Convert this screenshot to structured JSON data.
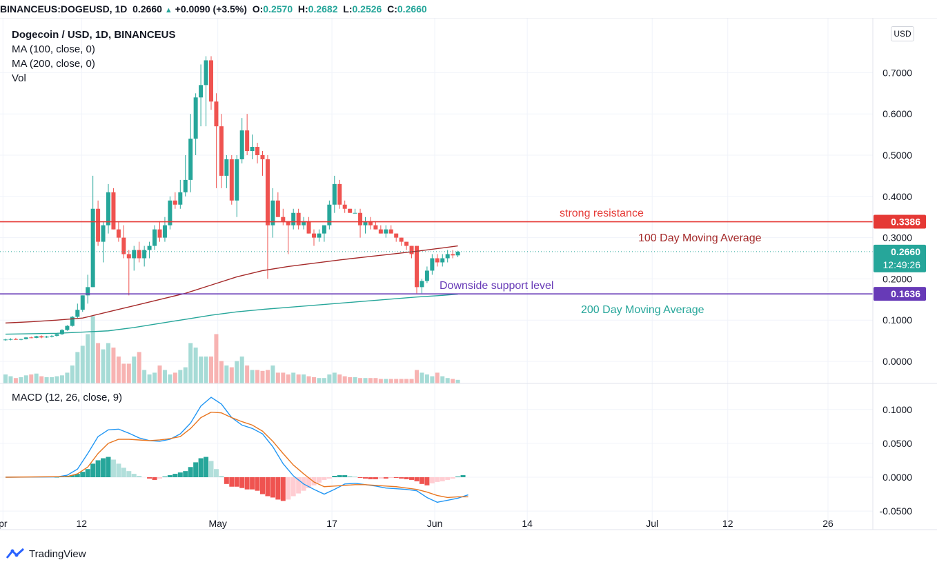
{
  "header": {
    "symbol": "BINANCEUS:DOGEUSD, 1D",
    "last": "0.2660",
    "change": "+0.0090 (+3.5%)",
    "o_label": "O:",
    "o": "0.2570",
    "h_label": "H:",
    "h": "0.2682",
    "l_label": "L:",
    "l": "0.2526",
    "c_label": "C:",
    "c": "0.2660"
  },
  "legend": {
    "title": "Dogecoin / USD, 1D, BINANCEUS",
    "ma100": "MA (100, close, 0)",
    "ma200": "MA (200, close, 0)",
    "vol": "Vol",
    "macd": "MACD (12, 26, close, 9)"
  },
  "currency_button": "USD",
  "brand": "TradingView",
  "colors": {
    "up": "#26a69a",
    "down": "#ef5350",
    "ma100": "#a52a2a",
    "ma200": "#26a69a",
    "resistance": "#e53935",
    "support": "#673ab7",
    "macd_line": "#2196f3",
    "signal_line": "#e87722"
  },
  "chart_data": {
    "type": "candlestick",
    "price_ticks": [
      "0.",
      "0.7000",
      "0.6000",
      "0.5000",
      "0.4000",
      "0.3000",
      "0.2000",
      "0.1000",
      "0.0000"
    ],
    "macd_ticks": [
      "0.1000",
      "0.0500",
      "0.0000",
      "-0.0500"
    ],
    "x_ticks": [
      "pr",
      "12",
      "May",
      "17",
      "Jun",
      "14",
      "Jul",
      "12",
      "26"
    ],
    "price_markers": [
      {
        "label": "0.3386",
        "value": 0.3386,
        "color": "#e53935"
      },
      {
        "label": "0.2660",
        "value": 0.266,
        "color": "#26a69a",
        "sub": "12:49:26"
      },
      {
        "label": "0.1636",
        "value": 0.1636,
        "color": "#673ab7"
      }
    ],
    "annotations": [
      {
        "text": "strong resistance",
        "color": "#e53935"
      },
      {
        "text": "100 Day Moving Average",
        "color": "#a52a2a"
      },
      {
        "text": "Downside support level",
        "color": "#673ab7"
      },
      {
        "text": "200 Day Moving Average",
        "color": "#26a69a"
      }
    ],
    "resistance": 0.3386,
    "support": 0.1636,
    "candles": [
      [
        0.052,
        0.055,
        0.05,
        0.053
      ],
      [
        0.053,
        0.056,
        0.051,
        0.054
      ],
      [
        0.054,
        0.057,
        0.052,
        0.053
      ],
      [
        0.053,
        0.055,
        0.051,
        0.054
      ],
      [
        0.054,
        0.059,
        0.053,
        0.058
      ],
      [
        0.058,
        0.06,
        0.056,
        0.057
      ],
      [
        0.057,
        0.062,
        0.056,
        0.061
      ],
      [
        0.061,
        0.063,
        0.056,
        0.058
      ],
      [
        0.058,
        0.062,
        0.057,
        0.06
      ],
      [
        0.06,
        0.064,
        0.058,
        0.062
      ],
      [
        0.062,
        0.068,
        0.06,
        0.066
      ],
      [
        0.066,
        0.078,
        0.064,
        0.076
      ],
      [
        0.076,
        0.088,
        0.074,
        0.086
      ],
      [
        0.086,
        0.11,
        0.084,
        0.108
      ],
      [
        0.108,
        0.14,
        0.105,
        0.125
      ],
      [
        0.125,
        0.16,
        0.12,
        0.16
      ],
      [
        0.16,
        0.21,
        0.14,
        0.18
      ],
      [
        0.18,
        0.45,
        0.18,
        0.37
      ],
      [
        0.37,
        0.39,
        0.28,
        0.29
      ],
      [
        0.29,
        0.34,
        0.24,
        0.33
      ],
      [
        0.33,
        0.43,
        0.31,
        0.41
      ],
      [
        0.41,
        0.42,
        0.32,
        0.32
      ],
      [
        0.32,
        0.34,
        0.29,
        0.3
      ],
      [
        0.3,
        0.33,
        0.25,
        0.26
      ],
      [
        0.26,
        0.27,
        0.16,
        0.25
      ],
      [
        0.25,
        0.28,
        0.22,
        0.27
      ],
      [
        0.27,
        0.29,
        0.24,
        0.25
      ],
      [
        0.25,
        0.28,
        0.23,
        0.27
      ],
      [
        0.27,
        0.29,
        0.25,
        0.28
      ],
      [
        0.28,
        0.33,
        0.27,
        0.32
      ],
      [
        0.32,
        0.34,
        0.29,
        0.3
      ],
      [
        0.3,
        0.35,
        0.29,
        0.33
      ],
      [
        0.33,
        0.4,
        0.32,
        0.39
      ],
      [
        0.39,
        0.41,
        0.37,
        0.38
      ],
      [
        0.38,
        0.44,
        0.37,
        0.41
      ],
      [
        0.41,
        0.5,
        0.4,
        0.44
      ],
      [
        0.44,
        0.6,
        0.41,
        0.54
      ],
      [
        0.54,
        0.65,
        0.5,
        0.64
      ],
      [
        0.64,
        0.72,
        0.57,
        0.67
      ],
      [
        0.67,
        0.74,
        0.57,
        0.73
      ],
      [
        0.73,
        0.74,
        0.61,
        0.63
      ],
      [
        0.63,
        0.65,
        0.42,
        0.57
      ],
      [
        0.57,
        0.6,
        0.42,
        0.45
      ],
      [
        0.45,
        0.5,
        0.42,
        0.49
      ],
      [
        0.49,
        0.5,
        0.38,
        0.39
      ],
      [
        0.39,
        0.5,
        0.35,
        0.49
      ],
      [
        0.49,
        0.59,
        0.48,
        0.56
      ],
      [
        0.56,
        0.6,
        0.5,
        0.51
      ],
      [
        0.51,
        0.55,
        0.49,
        0.52
      ],
      [
        0.52,
        0.53,
        0.48,
        0.5
      ],
      [
        0.5,
        0.51,
        0.45,
        0.49
      ],
      [
        0.49,
        0.5,
        0.2,
        0.33
      ],
      [
        0.33,
        0.42,
        0.3,
        0.39
      ],
      [
        0.39,
        0.41,
        0.35,
        0.35
      ],
      [
        0.35,
        0.37,
        0.33,
        0.34
      ],
      [
        0.34,
        0.34,
        0.26,
        0.33
      ],
      [
        0.33,
        0.37,
        0.32,
        0.36
      ],
      [
        0.36,
        0.37,
        0.32,
        0.33
      ],
      [
        0.33,
        0.35,
        0.32,
        0.34
      ],
      [
        0.34,
        0.35,
        0.31,
        0.31
      ],
      [
        0.31,
        0.32,
        0.28,
        0.3
      ],
      [
        0.3,
        0.32,
        0.29,
        0.31
      ],
      [
        0.31,
        0.33,
        0.29,
        0.33
      ],
      [
        0.33,
        0.39,
        0.32,
        0.38
      ],
      [
        0.38,
        0.45,
        0.36,
        0.43
      ],
      [
        0.43,
        0.44,
        0.37,
        0.38
      ],
      [
        0.38,
        0.39,
        0.36,
        0.37
      ],
      [
        0.37,
        0.37,
        0.36,
        0.36
      ],
      [
        0.36,
        0.37,
        0.36,
        0.36
      ],
      [
        0.36,
        0.37,
        0.3,
        0.33
      ],
      [
        0.33,
        0.35,
        0.31,
        0.34
      ],
      [
        0.34,
        0.35,
        0.32,
        0.33
      ],
      [
        0.33,
        0.34,
        0.32,
        0.32
      ],
      [
        0.32,
        0.33,
        0.31,
        0.31
      ],
      [
        0.31,
        0.33,
        0.3,
        0.32
      ],
      [
        0.32,
        0.33,
        0.31,
        0.31
      ],
      [
        0.31,
        0.31,
        0.29,
        0.3
      ],
      [
        0.3,
        0.3,
        0.28,
        0.29
      ],
      [
        0.29,
        0.29,
        0.27,
        0.28
      ],
      [
        0.28,
        0.28,
        0.25,
        0.26
      ],
      [
        0.28,
        0.28,
        0.165,
        0.18
      ],
      [
        0.18,
        0.2,
        0.165,
        0.195
      ],
      [
        0.195,
        0.23,
        0.19,
        0.22
      ],
      [
        0.22,
        0.26,
        0.21,
        0.25
      ],
      [
        0.25,
        0.26,
        0.23,
        0.24
      ],
      [
        0.24,
        0.26,
        0.23,
        0.25
      ],
      [
        0.25,
        0.27,
        0.24,
        0.26
      ],
      [
        0.26,
        0.27,
        0.25,
        0.257
      ],
      [
        0.257,
        0.2682,
        0.2526,
        0.266
      ]
    ],
    "ma100": [
      [
        0,
        0.093
      ],
      [
        5,
        0.096
      ],
      [
        10,
        0.1
      ],
      [
        15,
        0.105
      ],
      [
        20,
        0.12
      ],
      [
        25,
        0.135
      ],
      [
        30,
        0.15
      ],
      [
        35,
        0.165
      ],
      [
        40,
        0.185
      ],
      [
        45,
        0.205
      ],
      [
        50,
        0.22
      ],
      [
        55,
        0.23
      ],
      [
        60,
        0.238
      ],
      [
        65,
        0.246
      ],
      [
        70,
        0.253
      ],
      [
        75,
        0.26
      ],
      [
        80,
        0.267
      ],
      [
        85,
        0.275
      ],
      [
        88,
        0.28
      ]
    ],
    "ma200": [
      [
        0,
        0.066
      ],
      [
        10,
        0.068
      ],
      [
        20,
        0.074
      ],
      [
        25,
        0.082
      ],
      [
        30,
        0.092
      ],
      [
        35,
        0.102
      ],
      [
        40,
        0.112
      ],
      [
        45,
        0.12
      ],
      [
        50,
        0.126
      ],
      [
        55,
        0.131
      ],
      [
        60,
        0.136
      ],
      [
        65,
        0.141
      ],
      [
        70,
        0.146
      ],
      [
        75,
        0.151
      ],
      [
        80,
        0.156
      ],
      [
        85,
        0.16
      ],
      [
        88,
        0.163
      ]
    ],
    "volume": [
      0.1,
      0.08,
      0.06,
      0.07,
      0.09,
      0.1,
      0.11,
      0.08,
      0.07,
      0.07,
      0.08,
      0.09,
      0.12,
      0.2,
      0.35,
      0.42,
      0.55,
      0.75,
      0.45,
      0.38,
      0.45,
      0.4,
      0.3,
      0.22,
      0.22,
      0.3,
      0.35,
      0.15,
      0.1,
      0.12,
      0.2,
      0.15,
      0.1,
      0.12,
      0.15,
      0.18,
      0.45,
      0.4,
      0.3,
      0.3,
      0.3,
      0.55,
      0.25,
      0.2,
      0.18,
      0.25,
      0.3,
      0.2,
      0.15,
      0.15,
      0.14,
      0.15,
      0.2,
      0.12,
      0.12,
      0.1,
      0.12,
      0.1,
      0.1,
      0.08,
      0.07,
      0.06,
      0.06,
      0.1,
      0.12,
      0.1,
      0.08,
      0.07,
      0.07,
      0.06,
      0.06,
      0.06,
      0.06,
      0.05,
      0.05,
      0.05,
      0.05,
      0.05,
      0.05,
      0.05,
      0.15,
      0.12,
      0.1,
      0.08,
      0.12,
      0.08,
      0.06,
      0.05,
      0.04
    ],
    "macd_line": [
      [
        0,
        0.0
      ],
      [
        10,
        0.0005
      ],
      [
        12,
        0.003
      ],
      [
        14,
        0.012
      ],
      [
        16,
        0.035
      ],
      [
        18,
        0.06
      ],
      [
        20,
        0.07
      ],
      [
        22,
        0.071
      ],
      [
        24,
        0.065
      ],
      [
        26,
        0.058
      ],
      [
        28,
        0.054
      ],
      [
        30,
        0.053
      ],
      [
        32,
        0.056
      ],
      [
        34,
        0.064
      ],
      [
        36,
        0.08
      ],
      [
        38,
        0.105
      ],
      [
        40,
        0.118
      ],
      [
        42,
        0.108
      ],
      [
        44,
        0.088
      ],
      [
        46,
        0.077
      ],
      [
        48,
        0.072
      ],
      [
        50,
        0.064
      ],
      [
        52,
        0.045
      ],
      [
        54,
        0.02
      ],
      [
        56,
        0.002
      ],
      [
        58,
        -0.01
      ],
      [
        60,
        -0.018
      ],
      [
        62,
        -0.025
      ],
      [
        64,
        -0.018
      ],
      [
        66,
        -0.01
      ],
      [
        68,
        -0.009
      ],
      [
        70,
        -0.011
      ],
      [
        72,
        -0.013
      ],
      [
        74,
        -0.016
      ],
      [
        76,
        -0.017
      ],
      [
        78,
        -0.018
      ],
      [
        80,
        -0.02
      ],
      [
        82,
        -0.03
      ],
      [
        84,
        -0.037
      ],
      [
        86,
        -0.034
      ],
      [
        88,
        -0.031
      ],
      [
        90,
        -0.026
      ]
    ],
    "signal_line": [
      [
        0,
        0.0
      ],
      [
        12,
        0.001
      ],
      [
        14,
        0.005
      ],
      [
        16,
        0.015
      ],
      [
        18,
        0.035
      ],
      [
        20,
        0.05
      ],
      [
        22,
        0.056
      ],
      [
        24,
        0.056
      ],
      [
        26,
        0.055
      ],
      [
        28,
        0.054
      ],
      [
        30,
        0.055
      ],
      [
        32,
        0.057
      ],
      [
        34,
        0.06
      ],
      [
        36,
        0.072
      ],
      [
        38,
        0.088
      ],
      [
        40,
        0.096
      ],
      [
        42,
        0.095
      ],
      [
        44,
        0.088
      ],
      [
        46,
        0.082
      ],
      [
        48,
        0.077
      ],
      [
        50,
        0.068
      ],
      [
        52,
        0.053
      ],
      [
        54,
        0.035
      ],
      [
        56,
        0.018
      ],
      [
        58,
        0.005
      ],
      [
        60,
        -0.007
      ],
      [
        62,
        -0.014
      ],
      [
        64,
        -0.013
      ],
      [
        66,
        -0.012
      ],
      [
        68,
        -0.011
      ],
      [
        70,
        -0.011
      ],
      [
        72,
        -0.012
      ],
      [
        74,
        -0.013
      ],
      [
        76,
        -0.014
      ],
      [
        78,
        -0.016
      ],
      [
        80,
        -0.018
      ],
      [
        82,
        -0.022
      ],
      [
        84,
        -0.027
      ],
      [
        86,
        -0.03
      ],
      [
        88,
        -0.029
      ],
      [
        90,
        -0.029
      ]
    ],
    "macd_hist": [
      0,
      0,
      0,
      0,
      0,
      0,
      0,
      0,
      0,
      0,
      0.0005,
      0.001,
      0.002,
      0.003,
      0.005,
      0.008,
      0.012,
      0.02,
      0.025,
      0.028,
      0.03,
      0.026,
      0.02,
      0.014,
      0.009,
      0.005,
      0.002,
      0,
      -0.002,
      -0.004,
      -0.002,
      0.001,
      0.003,
      0.005,
      0.007,
      0.009,
      0.015,
      0.022,
      0.028,
      0.03,
      0.024,
      0.012,
      0.002,
      -0.01,
      -0.014,
      -0.014,
      -0.016,
      -0.018,
      -0.018,
      -0.02,
      -0.025,
      -0.028,
      -0.03,
      -0.033,
      -0.035,
      -0.033,
      -0.028,
      -0.024,
      -0.02,
      -0.016,
      -0.012,
      -0.008,
      -0.004,
      -0.002,
      0.002,
      0.003,
      0.003,
      0.002,
      0.001,
      -0.001,
      -0.002,
      -0.003,
      -0.003,
      -0.002,
      -0.002,
      -0.001,
      -0.001,
      -0.002,
      -0.003,
      -0.004,
      -0.006,
      -0.01,
      -0.012,
      -0.009,
      -0.007,
      -0.006,
      -0.004,
      -0.002,
      0.001,
      0.003
    ]
  }
}
